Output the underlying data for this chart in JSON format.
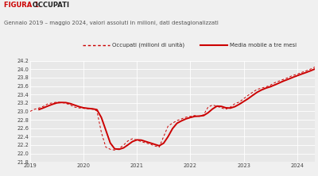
{
  "title_red": "FIGURA 1.",
  "title_black": " OCCUPATI",
  "subtitle": "Gennaio 2019 – maggio 2024, valori assoluti in milioni, dati destagionalizzati",
  "legend_dotted": "Occupati (milioni di unità)",
  "legend_solid": "Media mobile a tre mesi",
  "background_color": "#f0f0f0",
  "plot_bg_color": "#e8e8e8",
  "line_color": "#cc0000",
  "ylim": [
    21.8,
    24.2
  ],
  "yticks": [
    21.8,
    22.0,
    22.2,
    22.4,
    22.6,
    22.8,
    23.0,
    23.2,
    23.4,
    23.6,
    23.8,
    24.0,
    24.2
  ],
  "xtick_years": [
    2019,
    2020,
    2021,
    2022,
    2023,
    2024
  ],
  "occupati": [
    23.0,
    23.05,
    23.08,
    23.12,
    23.18,
    23.2,
    23.22,
    23.21,
    23.19,
    23.15,
    23.1,
    23.08,
    23.07,
    23.06,
    23.05,
    23.01,
    22.5,
    22.15,
    22.1,
    22.08,
    22.12,
    22.2,
    22.3,
    22.35,
    22.32,
    22.28,
    22.25,
    22.22,
    22.18,
    22.15,
    22.4,
    22.65,
    22.72,
    22.78,
    22.82,
    22.86,
    22.88,
    22.9,
    22.88,
    22.92,
    23.1,
    23.15,
    23.12,
    23.08,
    23.05,
    23.1,
    23.18,
    23.22,
    23.3,
    23.38,
    23.45,
    23.52,
    23.55,
    23.58,
    23.62,
    23.68,
    23.72,
    23.76,
    23.8,
    23.85,
    23.88,
    23.92,
    23.96,
    24.0,
    24.05
  ]
}
